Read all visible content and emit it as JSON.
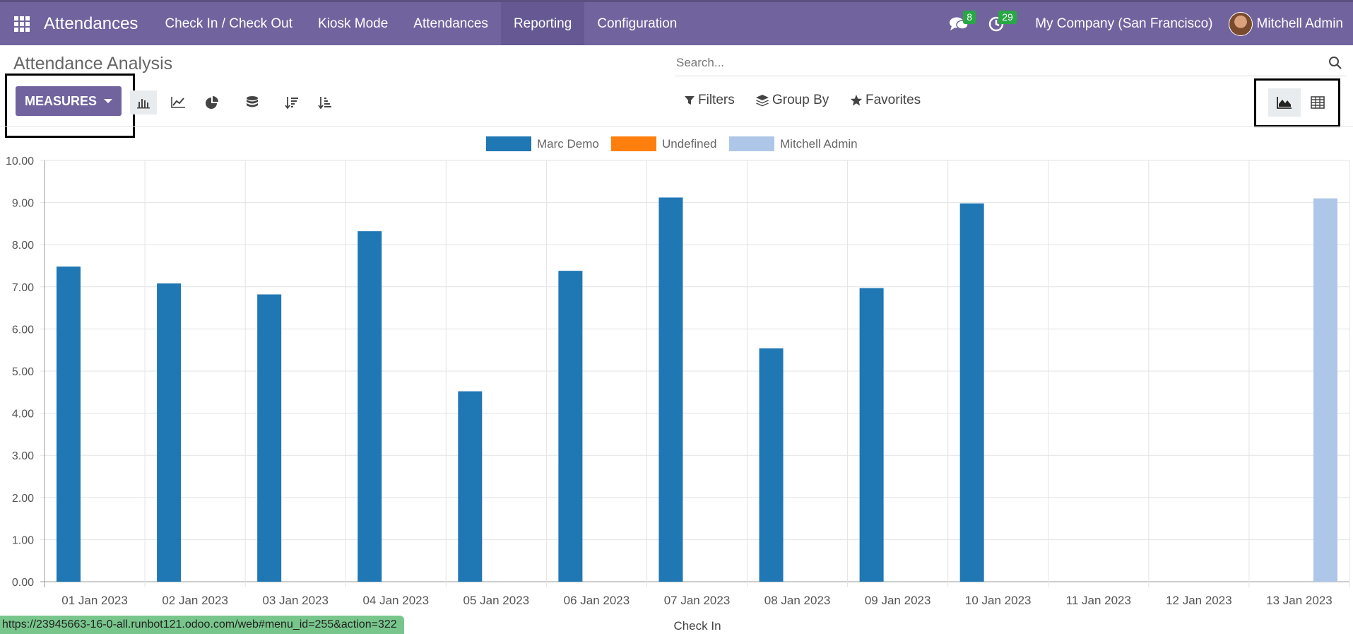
{
  "navbar": {
    "app_name": "Attendances",
    "menu": [
      {
        "label": "Check In / Check Out"
      },
      {
        "label": "Kiosk Mode"
      },
      {
        "label": "Attendances"
      },
      {
        "label": "Reporting"
      },
      {
        "label": "Configuration"
      }
    ],
    "messages_count": "8",
    "activities_count": "29",
    "company": "My Company (San Francisco)",
    "user": "Mitchell Admin"
  },
  "control_panel": {
    "title": "Attendance Analysis",
    "search_placeholder": "Search...",
    "measures_label": "MEASURES",
    "filters_label": "Filters",
    "group_by_label": "Group By",
    "favorites_label": "Favorites"
  },
  "statusbar": {
    "url": "https://23945663-16-0-all.runbot121.odoo.com/web#menu_id=255&action=322"
  },
  "colors": {
    "navbar": "#71639e",
    "marc_demo": "#1f77b4",
    "undefined": "#ff7f0e",
    "mitchell_admin": "#aec7e8"
  },
  "chart_data": {
    "type": "bar",
    "xlabel": "Check In",
    "ylabel": "",
    "ylim": [
      0,
      10
    ],
    "yticks": [
      "0.00",
      "1.00",
      "2.00",
      "3.00",
      "4.00",
      "5.00",
      "6.00",
      "7.00",
      "8.00",
      "9.00",
      "10.00"
    ],
    "legend_position": "top-center",
    "categories": [
      "01 Jan 2023",
      "02 Jan 2023",
      "03 Jan 2023",
      "04 Jan 2023",
      "05 Jan 2023",
      "06 Jan 2023",
      "07 Jan 2023",
      "08 Jan 2023",
      "09 Jan 2023",
      "10 Jan 2023",
      "11 Jan 2023",
      "12 Jan 2023",
      "13 Jan 2023"
    ],
    "series": [
      {
        "name": "Marc Demo",
        "color": "#1f77b4",
        "values": [
          7.48,
          7.08,
          6.82,
          8.32,
          4.52,
          7.38,
          9.12,
          5.54,
          6.97,
          8.98,
          0,
          0,
          0
        ]
      },
      {
        "name": "Undefined",
        "color": "#ff7f0e",
        "values": [
          0,
          0,
          0,
          0,
          0,
          0,
          0,
          0,
          0,
          0,
          0,
          0,
          0
        ]
      },
      {
        "name": "Mitchell Admin",
        "color": "#aec7e8",
        "values": [
          0,
          0,
          0,
          0,
          0,
          0,
          0,
          0,
          0,
          0,
          0,
          0,
          9.1
        ]
      }
    ]
  }
}
